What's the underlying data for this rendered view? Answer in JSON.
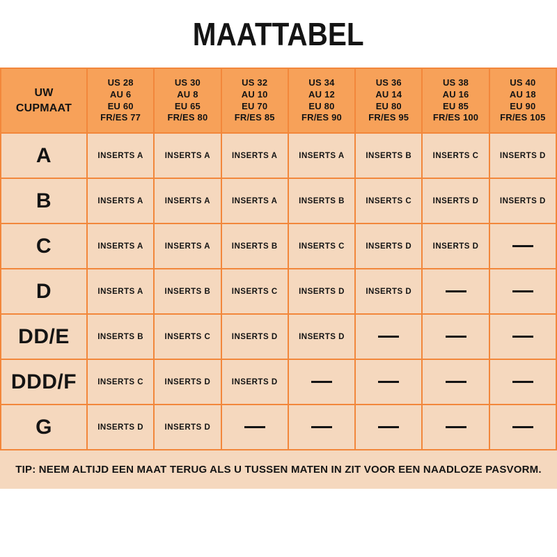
{
  "chart_data": {
    "type": "table",
    "title": "MAATTABEL",
    "corner_header": "UW\nCUPMAAT",
    "column_headers": [
      "US 28\nAU 6\nEU 60\nFR/ES 77",
      "US 30\nAU 8\nEU 65\nFR/ES 80",
      "US 32\nAU 10\nEU 70\nFR/ES 85",
      "US 34\nAU 12\nEU 80\nFR/ES 90",
      "US 36\nAU 14\nEU 80\nFR/ES 95",
      "US 38\nAU 16\nEU 85\nFR/ES 100",
      "US 40\nAU 18\nEU 90\nFR/ES 105"
    ],
    "row_labels": [
      "A",
      "B",
      "C",
      "D",
      "DD/E",
      "DDD/F",
      "G"
    ],
    "rows": [
      [
        "INSERTS A",
        "INSERTS A",
        "INSERTS A",
        "INSERTS A",
        "INSERTS B",
        "INSERTS C",
        "INSERTS D"
      ],
      [
        "INSERTS A",
        "INSERTS A",
        "INSERTS A",
        "INSERTS B",
        "INSERTS C",
        "INSERTS D",
        "INSERTS D"
      ],
      [
        "INSERTS A",
        "INSERTS A",
        "INSERTS B",
        "INSERTS C",
        "INSERTS D",
        "INSERTS D",
        "—"
      ],
      [
        "INSERTS A",
        "INSERTS B",
        "INSERTS C",
        "INSERTS D",
        "INSERTS D",
        "—",
        "—"
      ],
      [
        "INSERTS B",
        "INSERTS C",
        "INSERTS D",
        "INSERTS D",
        "—",
        "—",
        "—"
      ],
      [
        "INSERTS C",
        "INSERTS D",
        "INSERTS D",
        "—",
        "—",
        "—",
        "—"
      ],
      [
        "INSERTS D",
        "INSERTS D",
        "—",
        "—",
        "—",
        "—",
        "—"
      ]
    ],
    "empty_marker": "—",
    "footnote": "TIP: NEEM ALTIJD EEN MAAT TERUG ALS U TUSSEN MATEN IN ZIT VOOR EEN NAADLOZE PASVORM."
  },
  "colors": {
    "header_bg": "#F7A159",
    "cell_bg": "#F5D8BE",
    "grid": "#F2873B",
    "text": "#141414",
    "page_bg": "#FFFFFF"
  }
}
